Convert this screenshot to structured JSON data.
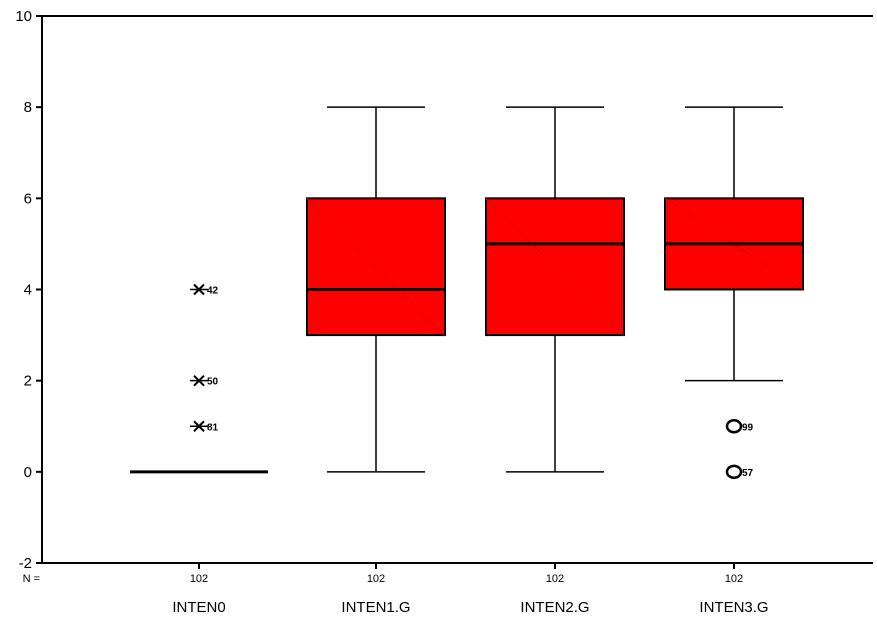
{
  "chart_data": {
    "type": "boxplot",
    "title": "",
    "xlabel": "",
    "ylabel": "",
    "ylim": [
      -2,
      10
    ],
    "yticks": [
      -2,
      0,
      2,
      4,
      6,
      8,
      10
    ],
    "n_label": "N =",
    "colors": {
      "box_fill": "#ff0000",
      "stroke": "#000000"
    },
    "series": [
      {
        "category": "INTEN0",
        "n": "102",
        "box": null,
        "median": 0,
        "whisker_low": 0,
        "whisker_high": 0,
        "outliers": [
          {
            "value": 4,
            "marker": "x",
            "label": "42"
          },
          {
            "value": 2,
            "marker": "x",
            "label": "50"
          },
          {
            "value": 1,
            "marker": "x",
            "label": "81"
          }
        ]
      },
      {
        "category": "INTEN1.G",
        "n": "102",
        "box": {
          "q1": 3,
          "median": 4,
          "q3": 6
        },
        "whisker_low": 0,
        "whisker_high": 8,
        "outliers": []
      },
      {
        "category": "INTEN2.G",
        "n": "102",
        "box": {
          "q1": 3,
          "median": 5,
          "q3": 6
        },
        "whisker_low": 0,
        "whisker_high": 8,
        "outliers": []
      },
      {
        "category": "INTEN3.G",
        "n": "102",
        "box": {
          "q1": 4,
          "median": 5,
          "q3": 6
        },
        "whisker_low": 2,
        "whisker_high": 8,
        "outliers": [
          {
            "value": 1,
            "marker": "o",
            "label": "99"
          },
          {
            "value": 0,
            "marker": "o",
            "label": "57"
          }
        ]
      }
    ]
  }
}
